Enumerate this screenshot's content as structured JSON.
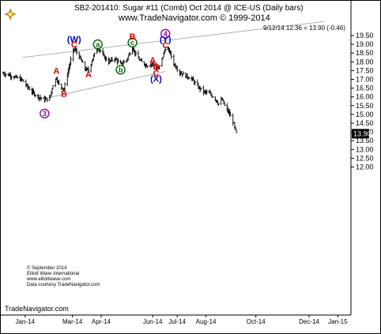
{
  "header": {
    "title": "SB2-201410:  Sugar #11 (Comb) Oct 2014 @ ICE-US  (Daily bars)",
    "url": "www.TradeNavigator.com © 1999-2014",
    "readout": "9/12/14 12:36 = 13.90 (-0.46)"
  },
  "credits": [
    "© September 2014",
    "Elliott Wave International",
    "www.elliottwave.com",
    "Data courtesy TradeNavigator.com"
  ],
  "footer": {
    "brand": "TradeNavigator.com"
  },
  "colors": {
    "red_label": "#dd0000",
    "blue_label": "#0000cc",
    "green_label": "#006600",
    "purple_label": "#990099",
    "bars": "#000000",
    "channel": "#999999",
    "last_price_box": "#000000"
  },
  "logo_icon": "tradenavigator-gold-compass-icon",
  "chart_data": {
    "type": "ohlc",
    "y_axis": {
      "position": "right",
      "ylim": [
        11.6,
        19.75
      ],
      "ticks": [
        "19.50",
        "19.00",
        "18.50",
        "18.00",
        "17.50",
        "17.00",
        "16.50",
        "16.00",
        "15.50",
        "15.00",
        "14.50",
        "14.00",
        "13.50",
        "13.00",
        "12.50",
        "12.00"
      ]
    },
    "x_axis": {
      "ticks": [
        "Jan-14",
        "Mar-14",
        "Apr-14",
        "Jun-14",
        "Jul-14",
        "Aug-14",
        "Oct-14",
        "Dec-14",
        "Jan-15"
      ]
    },
    "last_price": "13.90",
    "close_path": [
      [
        "2013-12-10",
        17.35
      ],
      [
        "2013-12-20",
        17.2
      ],
      [
        "2014-01-02",
        16.95
      ],
      [
        "2014-01-08",
        16.55
      ],
      [
        "2014-01-14",
        16.25
      ],
      [
        "2014-01-21",
        16.0
      ],
      [
        "2014-01-28",
        15.85
      ],
      [
        "2014-02-03",
        15.9
      ],
      [
        "2014-02-07",
        16.7
      ],
      [
        "2014-02-11",
        17.1
      ],
      [
        "2014-02-14",
        16.7
      ],
      [
        "2014-02-20",
        16.45
      ],
      [
        "2014-02-24",
        17.3
      ],
      [
        "2014-02-28",
        18.1
      ],
      [
        "2014-03-04",
        18.75
      ],
      [
        "2014-03-10",
        18.3
      ],
      [
        "2014-03-17",
        17.6
      ],
      [
        "2014-03-21",
        17.5
      ],
      [
        "2014-03-26",
        18.2
      ],
      [
        "2014-04-01",
        18.85
      ],
      [
        "2014-04-08",
        18.3
      ],
      [
        "2014-04-14",
        18.0
      ],
      [
        "2014-04-21",
        18.2
      ],
      [
        "2014-04-28",
        17.85
      ],
      [
        "2014-05-05",
        18.1
      ],
      [
        "2014-05-12",
        18.85
      ],
      [
        "2014-05-16",
        18.4
      ],
      [
        "2014-05-22",
        18.0
      ],
      [
        "2014-05-29",
        17.8
      ],
      [
        "2014-06-05",
        17.9
      ],
      [
        "2014-06-09",
        17.6
      ],
      [
        "2014-06-12",
        17.6
      ],
      [
        "2014-06-17",
        18.3
      ],
      [
        "2014-06-20",
        18.8
      ],
      [
        "2014-06-25",
        18.6
      ],
      [
        "2014-06-30",
        17.9
      ],
      [
        "2014-07-07",
        17.4
      ],
      [
        "2014-07-14",
        17.2
      ],
      [
        "2014-07-21",
        17.05
      ],
      [
        "2014-07-28",
        16.6
      ],
      [
        "2014-08-04",
        16.3
      ],
      [
        "2014-08-11",
        16.2
      ],
      [
        "2014-08-18",
        15.9
      ],
      [
        "2014-08-22",
        15.6
      ],
      [
        "2014-08-26",
        15.85
      ],
      [
        "2014-08-29",
        15.5
      ],
      [
        "2014-09-03",
        15.1
      ],
      [
        "2014-09-08",
        14.6
      ],
      [
        "2014-09-12",
        13.9
      ]
    ],
    "channel_lines": [
      {
        "name": "upper",
        "points": [
          [
            "2014-01-02",
            18.25
          ],
          [
            "2014-12-25",
            20.3
          ]
        ]
      },
      {
        "name": "lower",
        "points": [
          [
            "2014-01-28",
            15.9
          ],
          [
            "2014-06-20",
            17.45
          ]
        ]
      }
    ],
    "wave_labels": [
      {
        "text": "3",
        "style": "circle",
        "color": "purple",
        "x": "2014-01-28",
        "y": 15.05
      },
      {
        "text": "A",
        "style": "plain",
        "color": "red",
        "x": "2014-02-11",
        "y": 17.5
      },
      {
        "text": "B",
        "style": "plain",
        "color": "red",
        "x": "2014-02-20",
        "y": 16.2
      },
      {
        "text": "(W)",
        "style": "plain",
        "color": "blue",
        "x": "2014-03-04",
        "y": 19.3
      },
      {
        "text": "C",
        "style": "plain",
        "color": "red",
        "x": "2014-03-04",
        "y": 19.0
      },
      {
        "text": "A",
        "style": "plain",
        "color": "red",
        "x": "2014-03-21",
        "y": 17.3
      },
      {
        "text": "a",
        "style": "circle",
        "color": "green",
        "x": "2014-04-01",
        "y": 19.0
      },
      {
        "text": "b",
        "style": "circle",
        "color": "green",
        "x": "2014-04-28",
        "y": 17.55
      },
      {
        "text": "c",
        "style": "circle",
        "color": "green",
        "x": "2014-05-12",
        "y": 19.1
      },
      {
        "text": "B",
        "style": "plain",
        "color": "red",
        "x": "2014-05-12",
        "y": 19.45
      },
      {
        "text": "A",
        "style": "plain",
        "color": "red",
        "x": "2014-06-05",
        "y": 18.1
      },
      {
        "text": "B",
        "style": "plain",
        "color": "red",
        "x": "2014-06-09",
        "y": 17.75
      },
      {
        "text": "C",
        "style": "plain",
        "color": "red",
        "x": "2014-06-09",
        "y": 17.35
      },
      {
        "text": "(X)",
        "style": "plain",
        "color": "blue",
        "x": "2014-06-09",
        "y": 17.05
      },
      {
        "text": "4",
        "style": "circle",
        "color": "purple",
        "x": "2014-06-20",
        "y": 19.6
      },
      {
        "text": "(Y)",
        "style": "plain",
        "color": "blue",
        "x": "2014-06-20",
        "y": 19.3
      },
      {
        "text": "C",
        "style": "plain",
        "color": "red",
        "x": "2014-06-20",
        "y": 18.95
      }
    ]
  }
}
